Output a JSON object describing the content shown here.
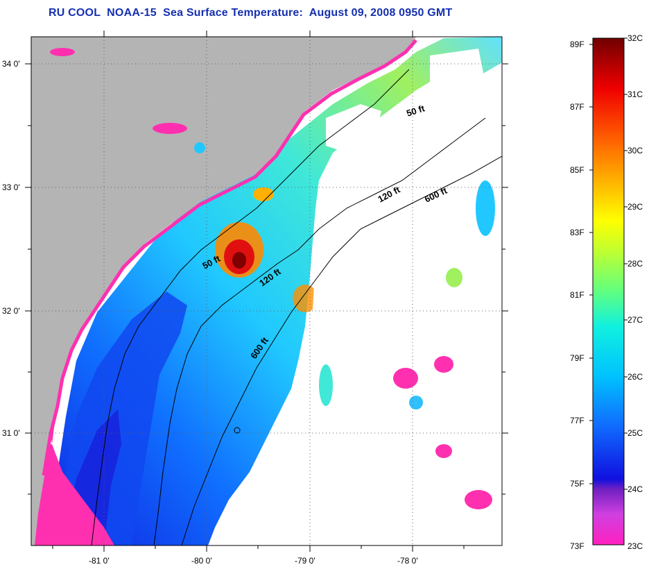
{
  "title": "RU COOL  NOAA-15  Sea Surface Temperature:  August 09, 2008 0950 GMT",
  "map": {
    "lon_ticks": [
      "-81 0'",
      "-80 0'",
      "-79 0'",
      "-78 0'"
    ],
    "lat_ticks": [
      "34 0'",
      "33 0'",
      "32 0'",
      "31 0'"
    ],
    "contours": [
      {
        "name": "50 ft",
        "label": "50 ft"
      },
      {
        "name": "120 ft",
        "label": "120 ft"
      },
      {
        "name": "600 ft",
        "label": "600 ft"
      }
    ],
    "contour_labels": [
      "50 ft",
      "50 ft",
      "120 ft",
      "120 ft",
      "600 ft",
      "600 ft"
    ],
    "colors": {
      "land": "#b4b4b4",
      "cloud": "#ffffff",
      "cold": "#ff30b0"
    }
  },
  "colorbar": {
    "fahrenheit": [
      "89F",
      "87F",
      "85F",
      "83F",
      "81F",
      "79F",
      "77F",
      "75F",
      "73F"
    ],
    "celsius": [
      "32C",
      "31C",
      "30C",
      "29C",
      "28C",
      "27C",
      "26C",
      "25C",
      "24C",
      "23C"
    ]
  }
}
